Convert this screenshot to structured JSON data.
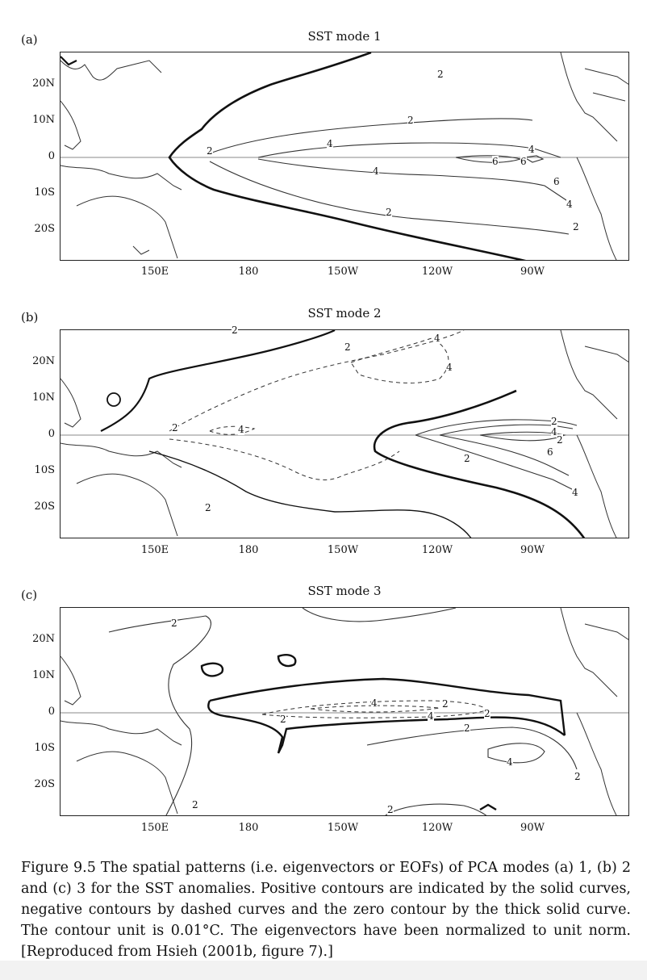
{
  "panels": [
    {
      "label": "(a)",
      "title": "SST mode 1"
    },
    {
      "label": "(b)",
      "title": "SST mode 2"
    },
    {
      "label": "(c)",
      "title": "SST mode 3"
    }
  ],
  "axes": {
    "y_ticks": [
      "20N",
      "10N",
      "0",
      "10S",
      "20S"
    ],
    "x_ticks": [
      "150E",
      "180",
      "150W",
      "120W",
      "90W"
    ]
  },
  "contour_labels": {
    "mode1": [
      "2",
      "4",
      "6",
      "6",
      "4",
      "2",
      "4",
      "2",
      "6",
      "4",
      "2",
      "2"
    ],
    "mode2": [
      "2",
      "4",
      "2",
      "4",
      "2",
      "4",
      "4",
      "2",
      "2",
      "6",
      "4",
      "2",
      "2"
    ],
    "mode3": [
      "2",
      "4",
      "2",
      "4",
      "2",
      "2",
      "2",
      "4",
      "2",
      "2",
      "2"
    ]
  },
  "caption": "Figure 9.5 The spatial patterns (i.e. eigenvectors or EOFs) of PCA modes (a) 1, (b) 2 and (c) 3 for the SST anomalies. Positive contours are indicated by the solid curves, negative contours by dashed curves and the zero contour by the thick solid curve. The contour unit is 0.01°C. The eigenvectors have been normalized to unit norm. [Reproduced from Hsieh (2001b, figure 7).]"
}
